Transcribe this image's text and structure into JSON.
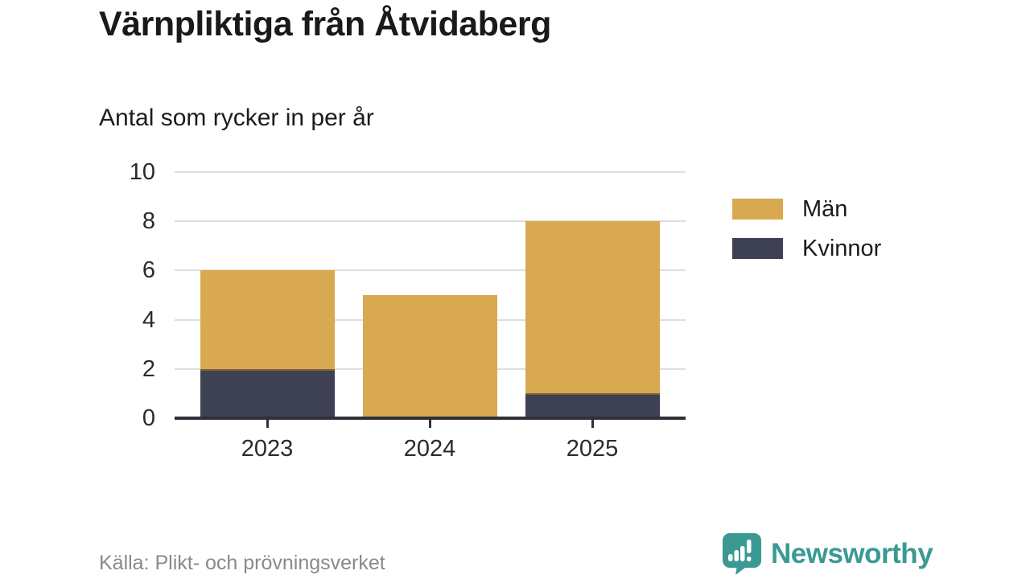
{
  "header": {
    "title": "Värnpliktiga från Åtvidaberg",
    "subtitle": "Antal som rycker in per år"
  },
  "chart_data": {
    "type": "bar",
    "stacked": true,
    "title": "Värnpliktiga från Åtvidaberg",
    "subtitle": "Antal som rycker in per år",
    "xlabel": "",
    "ylabel": "",
    "categories": [
      "2023",
      "2024",
      "2025"
    ],
    "series": [
      {
        "name": "Kvinnor",
        "color": "#3e4053",
        "values": [
          2,
          0,
          1
        ],
        "stack_position": "bottom"
      },
      {
        "name": "Män",
        "color": "#d8a950",
        "values": [
          4,
          5,
          7
        ],
        "stack_position": "top"
      }
    ],
    "stack_totals": [
      6,
      5,
      8
    ],
    "ylim": [
      0,
      10
    ],
    "yticks": [
      0,
      2,
      4,
      6,
      8,
      10
    ],
    "grid": "horizontal",
    "legend_position": "right",
    "legend_order": [
      "Män",
      "Kvinnor"
    ]
  },
  "footer": {
    "source": "Källa: Plikt- och prövningsverket",
    "brand": "Newsworthy"
  },
  "colors": {
    "men": "#d8a950",
    "women": "#3e4053",
    "grid": "#dedede",
    "axis": "#2f3038",
    "segment_divider": "rgba(47,42,33,0.55)",
    "title_text": "#1a1a1a",
    "tick_text": "#2b2b2b",
    "source_text": "#8a8a8a",
    "brand_teal": "#3a9a93"
  }
}
